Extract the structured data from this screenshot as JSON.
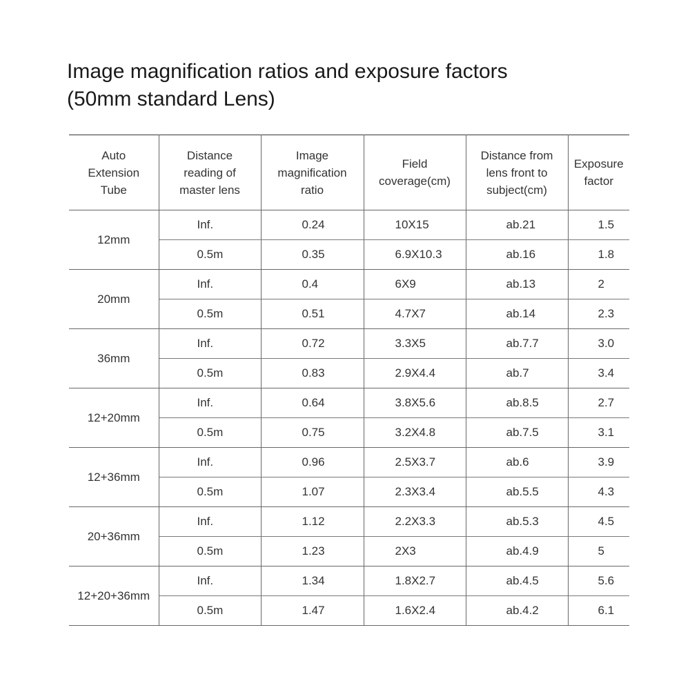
{
  "title_line1": "Image magnification ratios and exposure factors",
  "title_line2": "(50mm standard Lens)",
  "headers": [
    "Auto Extension Tube",
    "Distance reading of master lens",
    "Image magnification ratio",
    "Field coverage(cm)",
    "Distance from lens front to subject(cm)",
    "Exposure factor"
  ],
  "groups": [
    {
      "tube": "12mm",
      "rows": [
        [
          "Inf.",
          "0.24",
          "10X15",
          "ab.21",
          "1.5"
        ],
        [
          "0.5m",
          "0.35",
          "6.9X10.3",
          "ab.16",
          "1.8"
        ]
      ]
    },
    {
      "tube": "20mm",
      "rows": [
        [
          "Inf.",
          "0.4",
          "6X9",
          "ab.13",
          "2"
        ],
        [
          "0.5m",
          "0.51",
          "4.7X7",
          "ab.14",
          "2.3"
        ]
      ]
    },
    {
      "tube": "36mm",
      "rows": [
        [
          "Inf.",
          "0.72",
          "3.3X5",
          "ab.7.7",
          "3.0"
        ],
        [
          "0.5m",
          "0.83",
          "2.9X4.4",
          "ab.7",
          "3.4"
        ]
      ]
    },
    {
      "tube": "12+20mm",
      "rows": [
        [
          "Inf.",
          "0.64",
          "3.8X5.6",
          "ab.8.5",
          "2.7"
        ],
        [
          "0.5m",
          "0.75",
          "3.2X4.8",
          "ab.7.5",
          "3.1"
        ]
      ]
    },
    {
      "tube": "12+36mm",
      "rows": [
        [
          "Inf.",
          "0.96",
          "2.5X3.7",
          "ab.6",
          "3.9"
        ],
        [
          "0.5m",
          "1.07",
          "2.3X3.4",
          "ab.5.5",
          "4.3"
        ]
      ]
    },
    {
      "tube": "20+36mm",
      "rows": [
        [
          "Inf.",
          "1.12",
          "2.2X3.3",
          "ab.5.3",
          "4.5"
        ],
        [
          "0.5m",
          "1.23",
          "2X3",
          "ab.4.9",
          "5"
        ]
      ]
    },
    {
      "tube": "12+20+36mm",
      "rows": [
        [
          "Inf.",
          "1.34",
          "1.8X2.7",
          "ab.4.5",
          "5.6"
        ],
        [
          "0.5m",
          "1.47",
          "1.6X2.4",
          "ab.4.2",
          "6.1"
        ]
      ]
    }
  ]
}
